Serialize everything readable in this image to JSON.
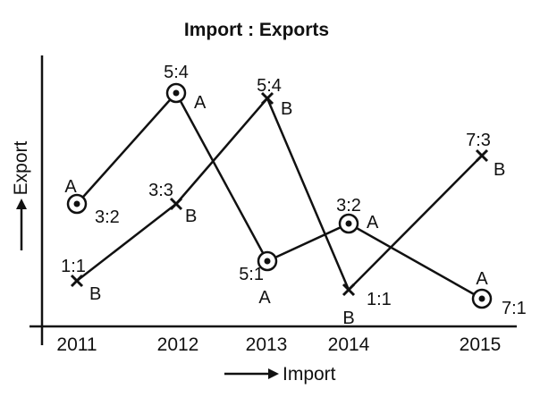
{
  "chart_data": {
    "type": "line",
    "title": "Import : Exports",
    "xlabel": "Import",
    "ylabel": "Export",
    "categories": [
      "2011",
      "2012",
      "2013",
      "2014",
      "2015"
    ],
    "series": [
      {
        "name": "A",
        "marker": "circle-dot",
        "points": [
          {
            "x": "2011",
            "ratio": "3:2"
          },
          {
            "x": "2012",
            "ratio": "5:4"
          },
          {
            "x": "2013",
            "ratio": "5:1"
          },
          {
            "x": "2014",
            "ratio": "3:2"
          },
          {
            "x": "2015",
            "ratio": "7:1"
          }
        ]
      },
      {
        "name": "B",
        "marker": "cross",
        "points": [
          {
            "x": "2011",
            "ratio": "1:1"
          },
          {
            "x": "2012",
            "ratio": "3:3"
          },
          {
            "x": "2013",
            "ratio": "5:4"
          },
          {
            "x": "2014",
            "ratio": "1:1"
          },
          {
            "x": "2015",
            "ratio": "7:3"
          }
        ]
      }
    ],
    "grid": false,
    "legend": "none"
  }
}
